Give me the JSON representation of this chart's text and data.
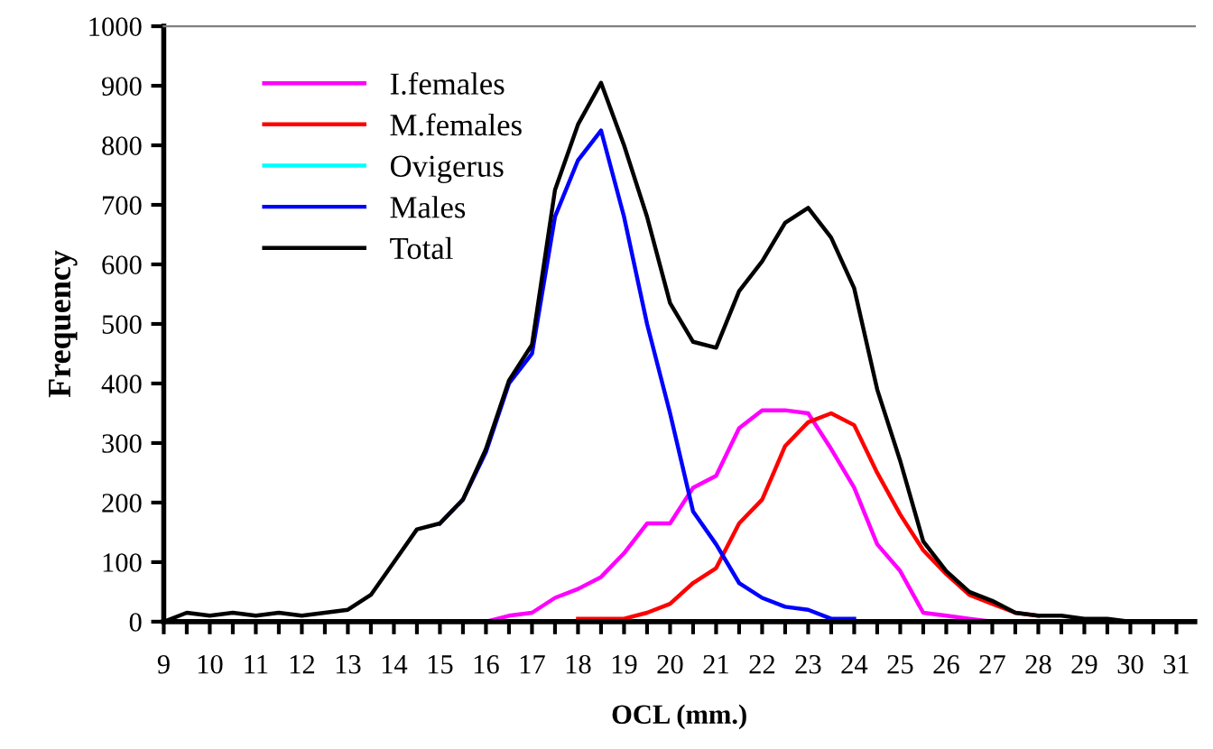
{
  "chart_data": {
    "type": "line",
    "xlabel": "OCL (mm.)",
    "ylabel": "Frequency",
    "xlim": [
      9,
      31.4
    ],
    "ylim": [
      0,
      1000
    ],
    "xticks": [
      9,
      {
        "value": 9.5,
        "label": null
      },
      10,
      {
        "value": 10.5,
        "label": null
      },
      11,
      {
        "value": 11.5,
        "label": null
      },
      12,
      {
        "value": 12.5,
        "label": null
      },
      13,
      {
        "value": 13.5,
        "label": null
      },
      14,
      {
        "value": 14.5,
        "label": null
      },
      15,
      {
        "value": 15.5,
        "label": null
      },
      16,
      {
        "value": 16.5,
        "label": null
      },
      17,
      {
        "value": 17.5,
        "label": null
      },
      18,
      {
        "value": 18.5,
        "label": null
      },
      19,
      {
        "value": 19.5,
        "label": null
      },
      20,
      {
        "value": 20.5,
        "label": null
      },
      21,
      {
        "value": 21.5,
        "label": null
      },
      22,
      {
        "value": 22.5,
        "label": null
      },
      23,
      {
        "value": 23.5,
        "label": null
      },
      24,
      {
        "value": 24.5,
        "label": null
      },
      25,
      {
        "value": 25.5,
        "label": null
      },
      26,
      {
        "value": 26.5,
        "label": null
      },
      27,
      {
        "value": 27.5,
        "label": null
      },
      28,
      {
        "value": 28.5,
        "label": null
      },
      29,
      {
        "value": 29.5,
        "label": null
      },
      30,
      {
        "value": 30.5,
        "label": null
      },
      31
    ],
    "yticks": [
      0,
      100,
      200,
      300,
      400,
      500,
      600,
      700,
      800,
      900,
      1000
    ],
    "grid": false,
    "legend": "top left",
    "marker": "none",
    "line_style": "solid",
    "series": [
      {
        "name": "I.females",
        "color": "#ff00ff",
        "x": [
          16,
          16.5,
          17,
          17.5,
          18,
          18.5,
          19,
          19.5,
          20,
          20.5,
          21,
          21.5,
          22,
          22.5,
          23,
          23.5,
          24,
          24.5,
          25,
          25.5,
          26,
          26.5,
          27
        ],
        "values": [
          0,
          10,
          15,
          40,
          55,
          75,
          115,
          165,
          165,
          225,
          245,
          325,
          355,
          355,
          350,
          290,
          225,
          130,
          85,
          15,
          10,
          5,
          0
        ]
      },
      {
        "name": "M.females",
        "color": "#ff0000",
        "x": [
          18,
          18.5,
          19,
          19.5,
          20,
          20.5,
          21,
          21.5,
          22,
          22.5,
          23,
          23.5,
          24,
          24.5,
          25,
          25.5,
          26,
          26.5,
          27,
          27.5,
          28
        ],
        "values": [
          5,
          5,
          5,
          15,
          30,
          65,
          90,
          165,
          205,
          295,
          335,
          350,
          330,
          250,
          180,
          120,
          80,
          45,
          30,
          15,
          10
        ]
      },
      {
        "name": "Ovigerus",
        "color": "#00ffff"
      },
      {
        "name": "Males",
        "color": "#0000ff",
        "x": [
          15,
          15.5,
          16,
          16.5,
          17,
          17.5,
          18,
          18.5,
          19,
          19.5,
          20,
          20.5,
          21,
          21.5,
          22,
          22.5,
          23,
          23.5,
          24
        ],
        "values": [
          165,
          205,
          285,
          400,
          450,
          680,
          775,
          825,
          680,
          500,
          350,
          185,
          130,
          65,
          40,
          25,
          20,
          5,
          5
        ]
      },
      {
        "name": "Total",
        "color": "#000000",
        "x": [
          9,
          9.5,
          10,
          10.5,
          11,
          11.5,
          12,
          12.5,
          13,
          13.5,
          14,
          14.5,
          15,
          15.5,
          16,
          16.5,
          17,
          17.5,
          18,
          18.5,
          19,
          19.5,
          20,
          20.5,
          21,
          21.5,
          22,
          22.5,
          23,
          23.5,
          24,
          24.5,
          25,
          25.5,
          26,
          26.5,
          27,
          27.5,
          28,
          28.5,
          29,
          29.5,
          30
        ],
        "values": [
          0,
          15,
          10,
          15,
          10,
          15,
          10,
          15,
          20,
          45,
          100,
          155,
          165,
          205,
          290,
          405,
          465,
          725,
          835,
          905,
          800,
          680,
          535,
          470,
          460,
          555,
          605,
          670,
          695,
          645,
          560,
          390,
          270,
          135,
          85,
          50,
          35,
          15,
          10,
          10,
          5,
          5,
          0
        ]
      }
    ]
  }
}
